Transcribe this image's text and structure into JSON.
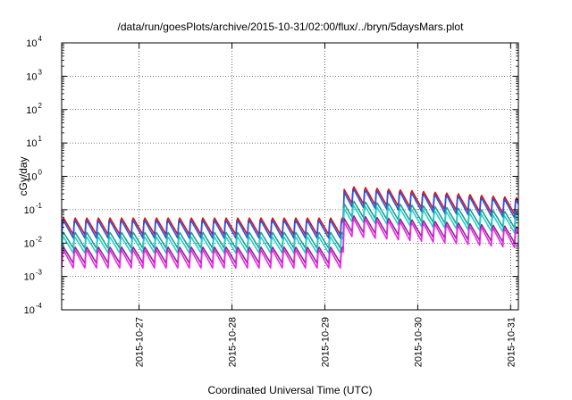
{
  "chart_data": {
    "type": "line",
    "title": "/data/run/goesPlots/archive/2015-10-31/02:00/flux/../bryn/5daysMars.plot",
    "xlabel": "Coordinated Universal Time (UTC)",
    "ylabel": "cGy/day",
    "y_scale": "log",
    "ylim": [
      0.0001,
      10000
    ],
    "xlim": [
      "2015-10-26T04:00",
      "2015-10-31T02:00"
    ],
    "x_ticks": [
      "2015-10-27",
      "2015-10-28",
      "2015-10-29",
      "2015-10-30",
      "2015-10-31"
    ],
    "y_ticks": [
      {
        "base": "10",
        "exp": "-4"
      },
      {
        "base": "10",
        "exp": "-3"
      },
      {
        "base": "10",
        "exp": "-2"
      },
      {
        "base": "10",
        "exp": "-1"
      },
      {
        "base": "10",
        "exp": "0"
      },
      {
        "base": "10",
        "exp": "1"
      },
      {
        "base": "10",
        "exp": "2"
      },
      {
        "base": "10",
        "exp": "3"
      },
      {
        "base": "10",
        "exp": "4"
      }
    ],
    "grid": true,
    "legend": "none",
    "event": {
      "time": "2015-10-29T05:00",
      "step_up_factor": 9,
      "decay_per_day": 0.65
    },
    "cycle_hours": 3,
    "series": [
      {
        "color": "#dd1111",
        "peak": 0.06,
        "trough": 0.018
      },
      {
        "color": "#2255ee",
        "peak": 0.05,
        "trough": 0.014
      },
      {
        "color": "#1f9e8f",
        "peak": 0.022,
        "trough": 0.007
      },
      {
        "color": "#22cfcf",
        "peak": 0.016,
        "trough": 0.005
      },
      {
        "color": "#8a2a8a",
        "peak": 0.008,
        "trough": 0.0025
      },
      {
        "color": "#ee22ee",
        "peak": 0.0065,
        "trough": 0.0018
      }
    ]
  }
}
